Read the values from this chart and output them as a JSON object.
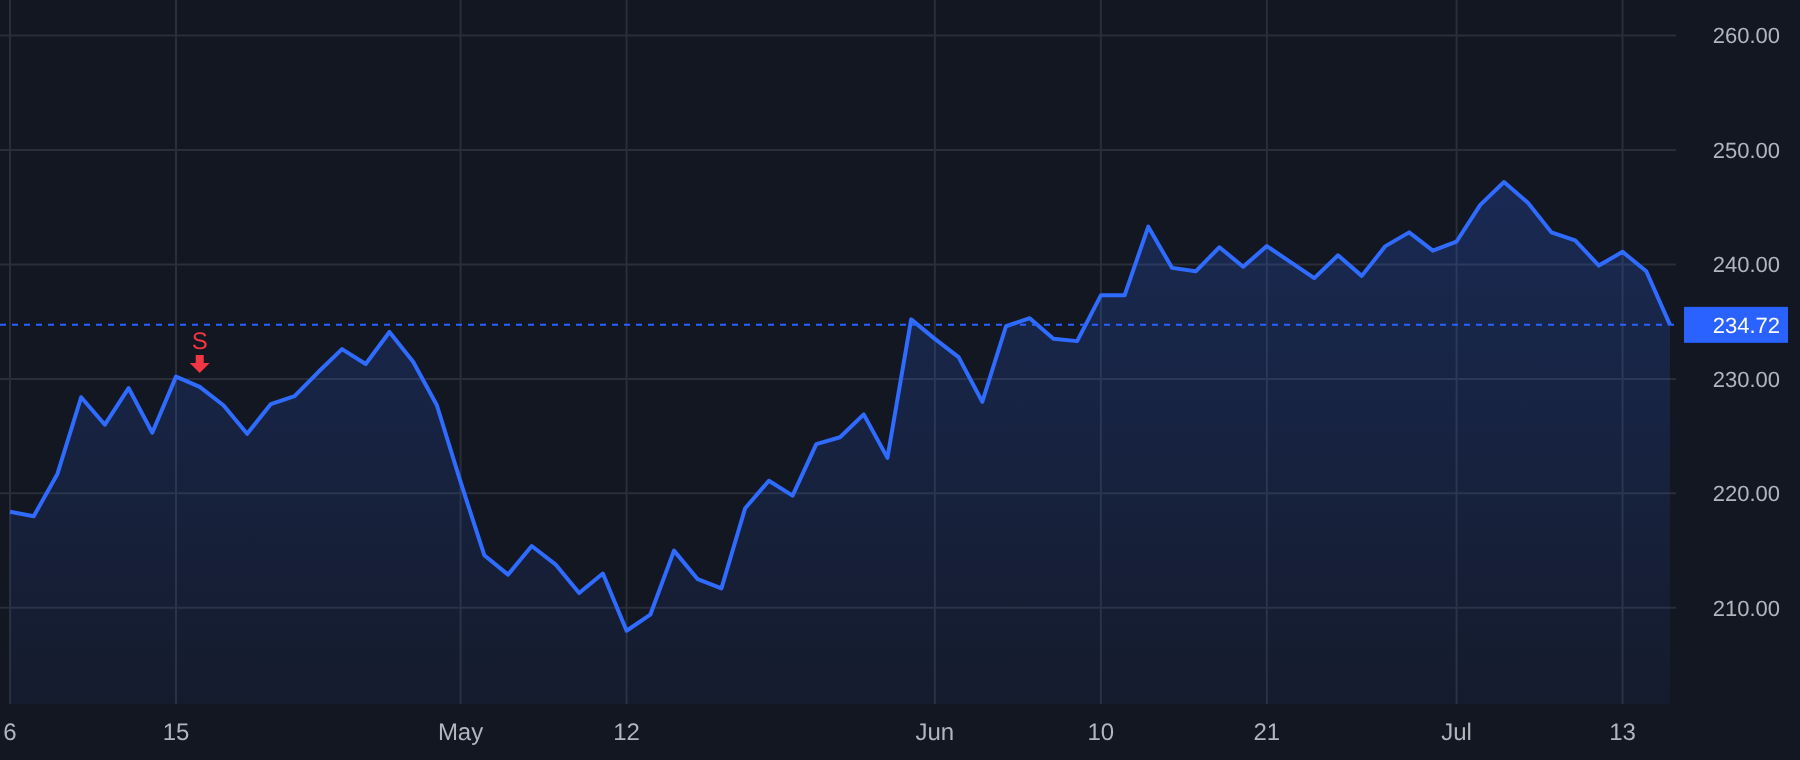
{
  "chart_data": {
    "type": "area",
    "categories": [
      "6",
      null,
      null,
      null,
      null,
      null,
      null,
      "15",
      null,
      null,
      null,
      null,
      null,
      null,
      null,
      null,
      null,
      null,
      null,
      "May",
      null,
      null,
      null,
      null,
      null,
      null,
      "12",
      null,
      null,
      null,
      null,
      null,
      null,
      null,
      null,
      null,
      null,
      null,
      null,
      "Jun",
      null,
      null,
      null,
      null,
      null,
      null,
      "10",
      null,
      null,
      null,
      null,
      null,
      null,
      "21",
      null,
      null,
      null,
      null,
      null,
      null,
      null,
      "Jul",
      null,
      null,
      null,
      null,
      null,
      null,
      "13",
      null,
      null
    ],
    "series": [
      {
        "color": "#2f6bff",
        "values": [
          218.4,
          218.0,
          221.7,
          228.4,
          226.0,
          229.2,
          225.3,
          230.2,
          229.3,
          227.7,
          225.2,
          227.8,
          228.5,
          230.6,
          232.6,
          231.3,
          234.1,
          231.5,
          227.7,
          221.0,
          214.6,
          212.9,
          215.4,
          213.8,
          211.3,
          213.0,
          208.0,
          209.4,
          215.0,
          212.5,
          211.7,
          218.7,
          221.1,
          219.8,
          224.3,
          224.9,
          226.9,
          223.1,
          235.2,
          233.5,
          231.9,
          228.0,
          234.6,
          235.3,
          233.5,
          233.3,
          237.3,
          237.3,
          243.3,
          239.7,
          239.4,
          241.5,
          239.8,
          241.6,
          240.2,
          238.8,
          240.8,
          239.0,
          241.6,
          242.8,
          241.2,
          242.0,
          245.2,
          247.2,
          245.4,
          242.8,
          242.1,
          239.9,
          241.1,
          239.4,
          234.72
        ]
      }
    ],
    "ylim": [
      201.6,
      263.1
    ],
    "yticks": [
      {
        "value": 210,
        "label": "210.00"
      },
      {
        "value": 220,
        "label": "220.00"
      },
      {
        "value": 230,
        "label": "230.00"
      },
      {
        "value": 240,
        "label": "240.00"
      },
      {
        "value": 250,
        "label": "250.00"
      },
      {
        "value": 260,
        "label": "260.00"
      }
    ],
    "grid": true,
    "marker": "none",
    "line_style": "solid",
    "ref_lines": [
      {
        "axis": "y",
        "value": 234.72,
        "label": "234.72",
        "color": "#2962ff",
        "line_style": "dashed"
      }
    ],
    "annotations": [
      {
        "text": "S",
        "y": 229.3
      }
    ]
  }
}
